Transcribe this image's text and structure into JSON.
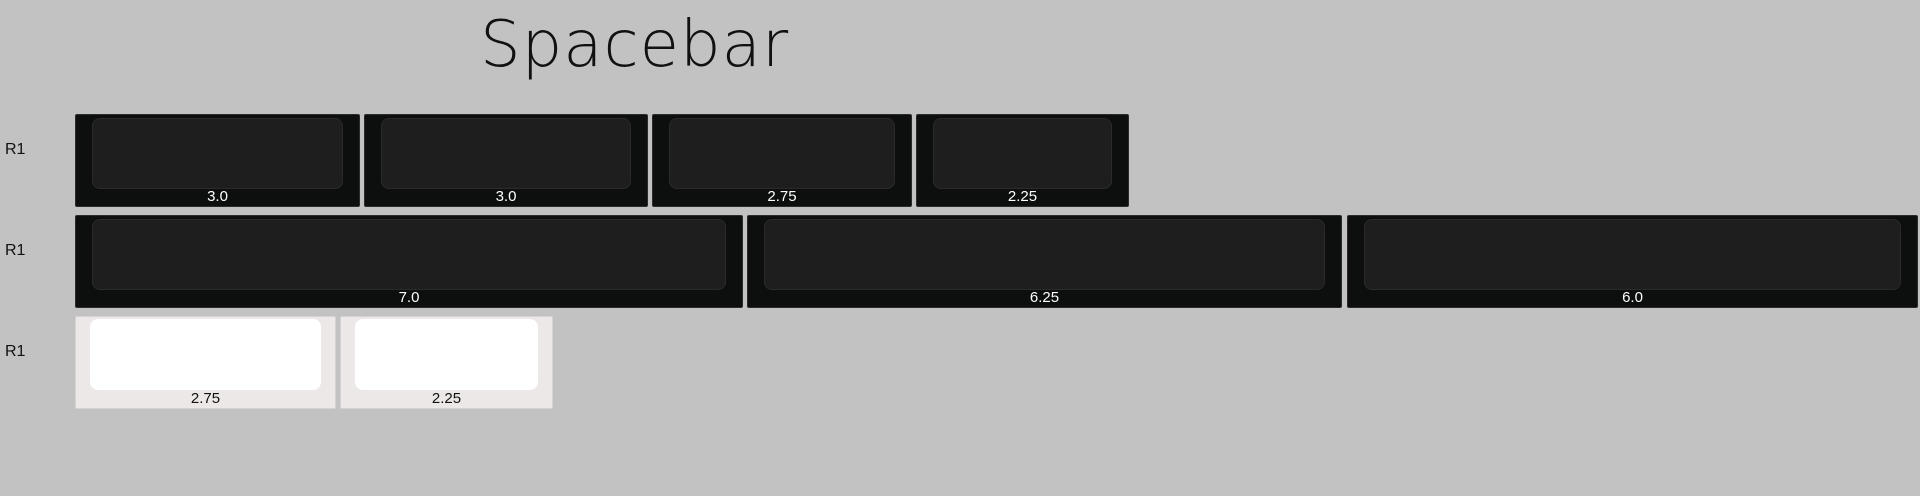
{
  "title": "Spacebar",
  "rows": [
    {
      "label": "R1",
      "keys": [
        {
          "size": "3.0",
          "variant": "dark"
        },
        {
          "size": "3.0",
          "variant": "dark"
        },
        {
          "size": "2.75",
          "variant": "dark"
        },
        {
          "size": "2.25",
          "variant": "dark"
        }
      ]
    },
    {
      "label": "R1",
      "keys": [
        {
          "size": "7.0",
          "variant": "dark"
        },
        {
          "size": "6.25",
          "variant": "dark"
        },
        {
          "size": "6.0",
          "variant": "dark"
        }
      ]
    },
    {
      "label": "R1",
      "keys": [
        {
          "size": "2.75",
          "variant": "light"
        },
        {
          "size": "2.25",
          "variant": "light"
        }
      ]
    }
  ],
  "colors": {
    "background": "#c1c2c1",
    "dark_key": "#0d0f0e",
    "dark_cap": "#1e1e1e",
    "light_key": "#ebe8e7",
    "light_cap": "#ffffff"
  }
}
